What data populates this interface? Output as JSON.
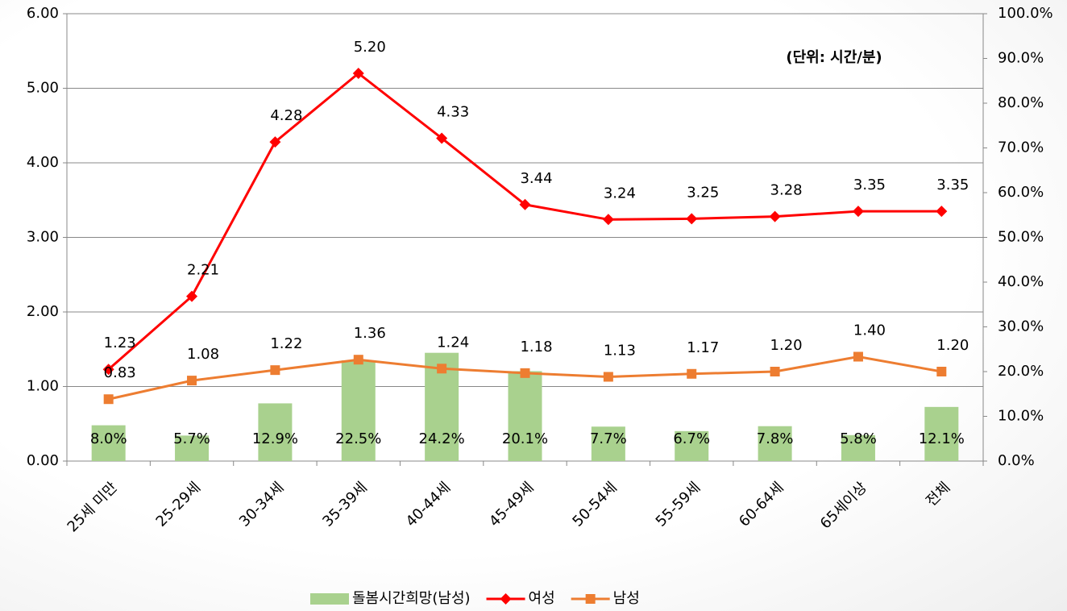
{
  "chart_data": {
    "type": "combo",
    "annotation": "(단위: 시간/분)",
    "categories": [
      "25세 미만",
      "25-29세",
      "30-34세",
      "35-39세",
      "40-44세",
      "45-49세",
      "50-54세",
      "55-59세",
      "60-64세",
      "65세이상",
      "전체"
    ],
    "series": [
      {
        "name": "돌봄시간희망(남성)",
        "type": "bar",
        "axis": "y2",
        "color": "#a9d18e",
        "values": [
          8.0,
          5.7,
          12.9,
          22.5,
          24.2,
          20.1,
          7.7,
          6.7,
          7.8,
          5.8,
          12.1
        ],
        "value_labels": [
          "8.0%",
          "5.7%",
          "12.9%",
          "22.5%",
          "24.2%",
          "20.1%",
          "7.7%",
          "6.7%",
          "7.8%",
          "5.8%",
          "12.1%"
        ]
      },
      {
        "name": "여성",
        "type": "line",
        "marker": "diamond",
        "color": "#ff0000",
        "values": [
          1.23,
          2.21,
          4.28,
          5.2,
          4.33,
          3.44,
          3.24,
          3.25,
          3.28,
          3.35,
          3.35
        ],
        "value_labels": [
          "1.23",
          "2.21",
          "4.28",
          "5.20",
          "4.33",
          "3.44",
          "3.24",
          "3.25",
          "3.28",
          "3.35",
          "3.35"
        ]
      },
      {
        "name": "남성",
        "type": "line",
        "marker": "square",
        "color": "#ed7d31",
        "values": [
          0.83,
          1.08,
          1.22,
          1.36,
          1.24,
          1.18,
          1.13,
          1.17,
          1.2,
          1.4,
          1.2
        ],
        "value_labels": [
          "0.83",
          "1.08",
          "1.22",
          "1.36",
          "1.24",
          "1.18",
          "1.13",
          "1.17",
          "1.20",
          "1.40",
          "1.20"
        ]
      }
    ],
    "ylim": [
      0,
      6
    ],
    "yticks": [
      {
        "value": 0,
        "label": "0.00"
      },
      {
        "value": 1,
        "label": "1.00"
      },
      {
        "value": 2,
        "label": "2.00"
      },
      {
        "value": 3,
        "label": "3.00"
      },
      {
        "value": 4,
        "label": "4.00"
      },
      {
        "value": 5,
        "label": "5.00"
      },
      {
        "value": 6,
        "label": "6.00"
      }
    ],
    "y2lim": [
      0,
      100
    ],
    "y2ticks": [
      {
        "value": 0,
        "label": "0.0%"
      },
      {
        "value": 10,
        "label": "10.0%"
      },
      {
        "value": 20,
        "label": "20.0%"
      },
      {
        "value": 30,
        "label": "30.0%"
      },
      {
        "value": 40,
        "label": "40.0%"
      },
      {
        "value": 50,
        "label": "50.0%"
      },
      {
        "value": 60,
        "label": "60.0%"
      },
      {
        "value": 70,
        "label": "70.0%"
      },
      {
        "value": 80,
        "label": "80.0%"
      },
      {
        "value": 90,
        "label": "90.0%"
      },
      {
        "value": 100,
        "label": "100.0%"
      }
    ],
    "grid": true,
    "legend": "bottom"
  }
}
